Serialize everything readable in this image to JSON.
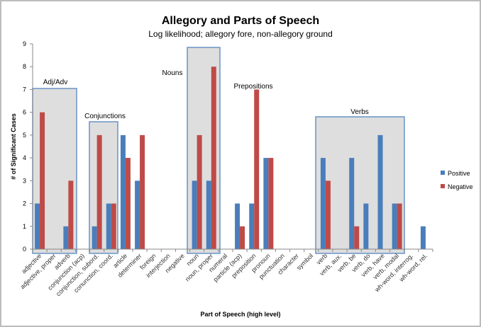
{
  "chart_data": {
    "type": "bar",
    "title": "Allegory and Parts of Speech",
    "subtitle": "Log likelihood; allegory fore, non-allegory ground",
    "xlabel": "Part of Speech (high level)",
    "ylabel": "# of Significant Cases",
    "ylim": [
      0,
      9
    ],
    "yticks": [
      "0",
      "1",
      "2",
      "3",
      "4",
      "5",
      "6",
      "7",
      "8",
      "9"
    ],
    "grid": false,
    "legend": "right",
    "categories": [
      "adjective",
      "adjective, proper",
      "adverb",
      "conjunction (acp)",
      "conjunction, subord.",
      "conunction, coord.",
      "article",
      "determiner",
      "foreign",
      "interjection",
      "negative",
      "noun",
      "noun, proper",
      "numeral",
      "particle (acp)",
      "preposition",
      "pronoun",
      "punctuation",
      "character",
      "symbol",
      "verb",
      "verb, aux.",
      "verb, be",
      "verb, do",
      "verb, have",
      "verb, modal",
      "wh-word, interrog.",
      "wh-word, rel."
    ],
    "series": [
      {
        "name": "Positive",
        "color": "#4a7ebb",
        "values": [
          2,
          0,
          1,
          0,
          1,
          2,
          5,
          3,
          0,
          0,
          0,
          3,
          3,
          0,
          2,
          2,
          4,
          0,
          0,
          0,
          4,
          0,
          4,
          2,
          5,
          2,
          0,
          1
        ]
      },
      {
        "name": "Negative",
        "color": "#be4b48",
        "values": [
          6,
          0,
          3,
          0,
          5,
          2,
          4,
          5,
          0,
          0,
          0,
          5,
          8,
          0,
          1,
          7,
          4,
          0,
          0,
          0,
          3,
          0,
          1,
          0,
          0,
          2,
          0,
          0
        ]
      }
    ],
    "annotations": [
      "Adj/Adv",
      "Conjunctions",
      "Nouns",
      "Prepositions",
      "Verbs"
    ]
  }
}
